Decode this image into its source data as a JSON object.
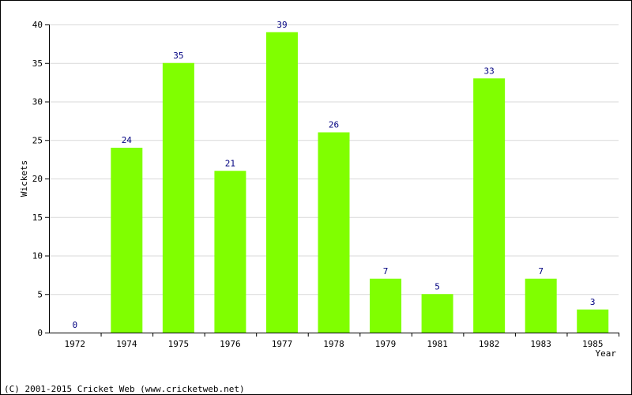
{
  "chart_data": {
    "type": "bar",
    "categories": [
      "1972",
      "1974",
      "1975",
      "1976",
      "1977",
      "1978",
      "1979",
      "1981",
      "1982",
      "1983",
      "1985"
    ],
    "values": [
      0,
      24,
      35,
      21,
      39,
      26,
      7,
      5,
      33,
      7,
      3
    ],
    "xlabel": "Year",
    "ylabel": "Wickets",
    "ylim": [
      0,
      40
    ],
    "yticks": [
      0,
      5,
      10,
      15,
      20,
      25,
      30,
      35,
      40
    ],
    "grid": true,
    "colors": {
      "bar": "#80ff00",
      "value_label": "#000080",
      "grid": "#d9d9d9",
      "axis": "#000000"
    }
  },
  "footer": {
    "copyright": "(C) 2001-2015 Cricket Web (www.cricketweb.net)"
  }
}
